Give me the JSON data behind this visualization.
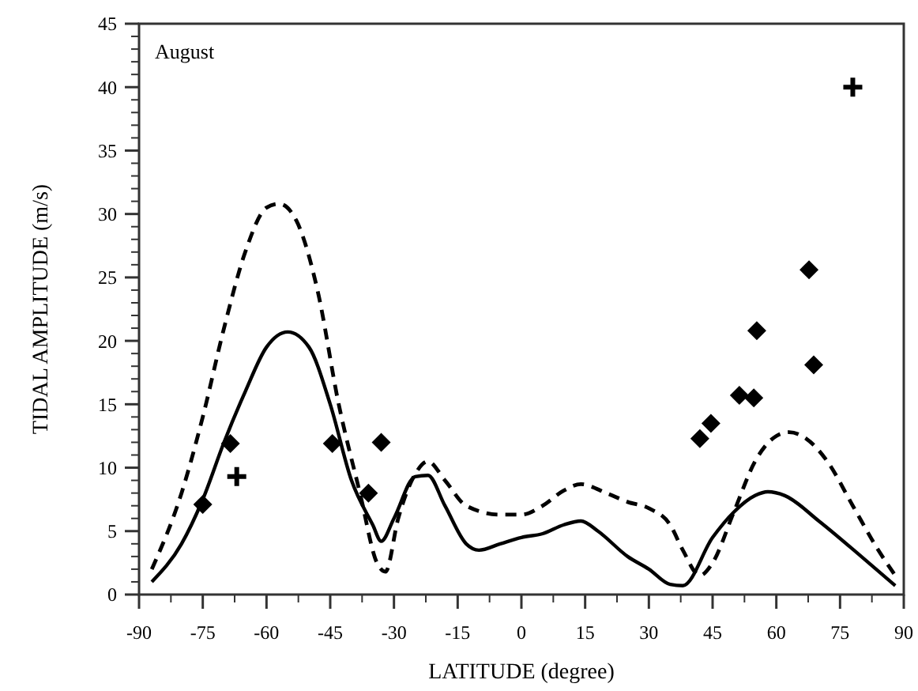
{
  "chart_data": {
    "type": "line",
    "xlabel": "LATITUDE  (degree)",
    "ylabel": "TIDAL AMPLITUDE  (m/s)",
    "annotations": [
      "August"
    ],
    "xlim": [
      -90,
      90
    ],
    "ylim": [
      0,
      45
    ],
    "xticks": [
      -90,
      -75,
      -60,
      -45,
      -30,
      -15,
      0,
      15,
      30,
      45,
      60,
      75,
      90
    ],
    "yticks": [
      0,
      5,
      10,
      15,
      20,
      25,
      30,
      35,
      40,
      45
    ],
    "grid": false,
    "series": [
      {
        "line_style": "solid",
        "marker": "none",
        "color": "#000000",
        "x": [
          -87,
          -80,
          -75,
          -70,
          -65,
          -60,
          -55,
          -50,
          -45,
          -40,
          -35,
          -33,
          -30,
          -25,
          -22,
          -18,
          -13,
          -10,
          -5,
          0,
          5,
          10,
          14,
          18,
          25,
          30,
          35,
          38,
          45,
          50,
          55,
          58,
          62,
          70,
          80,
          88
        ],
        "values": [
          1,
          4,
          7.5,
          12,
          16,
          19.5,
          20.7,
          19.5,
          15,
          9,
          5.5,
          4.2,
          6,
          9.3,
          9.4,
          7,
          4,
          3.5,
          4,
          4.5,
          4.8,
          5.5,
          5.8,
          5,
          3,
          2,
          0.8,
          0.7,
          4.5,
          6.5,
          7.8,
          8.1,
          7.8,
          5.8,
          3,
          0.7
        ]
      },
      {
        "line_style": "dashed",
        "marker": "none",
        "color": "#000000",
        "x": [
          -87,
          -80,
          -75,
          -70,
          -65,
          -60,
          -57,
          -53,
          -48,
          -43,
          -38,
          -34,
          -32,
          -29,
          -25,
          -22,
          -18,
          -13,
          -5,
          0,
          5,
          10,
          14,
          20,
          25,
          30,
          35,
          38,
          42,
          45,
          50,
          55,
          60,
          63,
          67,
          72,
          78,
          84,
          88
        ],
        "values": [
          2,
          8,
          14,
          21,
          27,
          30.5,
          30.8,
          29.5,
          24,
          15,
          8,
          2.5,
          1.8,
          6,
          9.5,
          10.5,
          9,
          7,
          6.3,
          6.3,
          7,
          8.2,
          8.7,
          8,
          7.3,
          6.8,
          5.5,
          3.5,
          1.5,
          2.5,
          6.5,
          10.5,
          12.5,
          12.8,
          12.3,
          10.5,
          7,
          3.5,
          1.5
        ]
      },
      {
        "type": "scatter",
        "marker": "diamond",
        "color": "#000000",
        "x": [
          -75,
          -68.5,
          -44.5,
          -36,
          -33,
          42,
          44.6,
          51.3,
          54.7,
          55.4,
          67.7,
          68.8
        ],
        "values": [
          7.1,
          11.9,
          11.9,
          8,
          12,
          12.3,
          13.5,
          15.7,
          15.5,
          20.8,
          25.6,
          18.1
        ]
      },
      {
        "type": "scatter",
        "marker": "cross",
        "color": "#000000",
        "x": [
          -67,
          78
        ],
        "values": [
          9.3,
          40
        ]
      }
    ]
  }
}
